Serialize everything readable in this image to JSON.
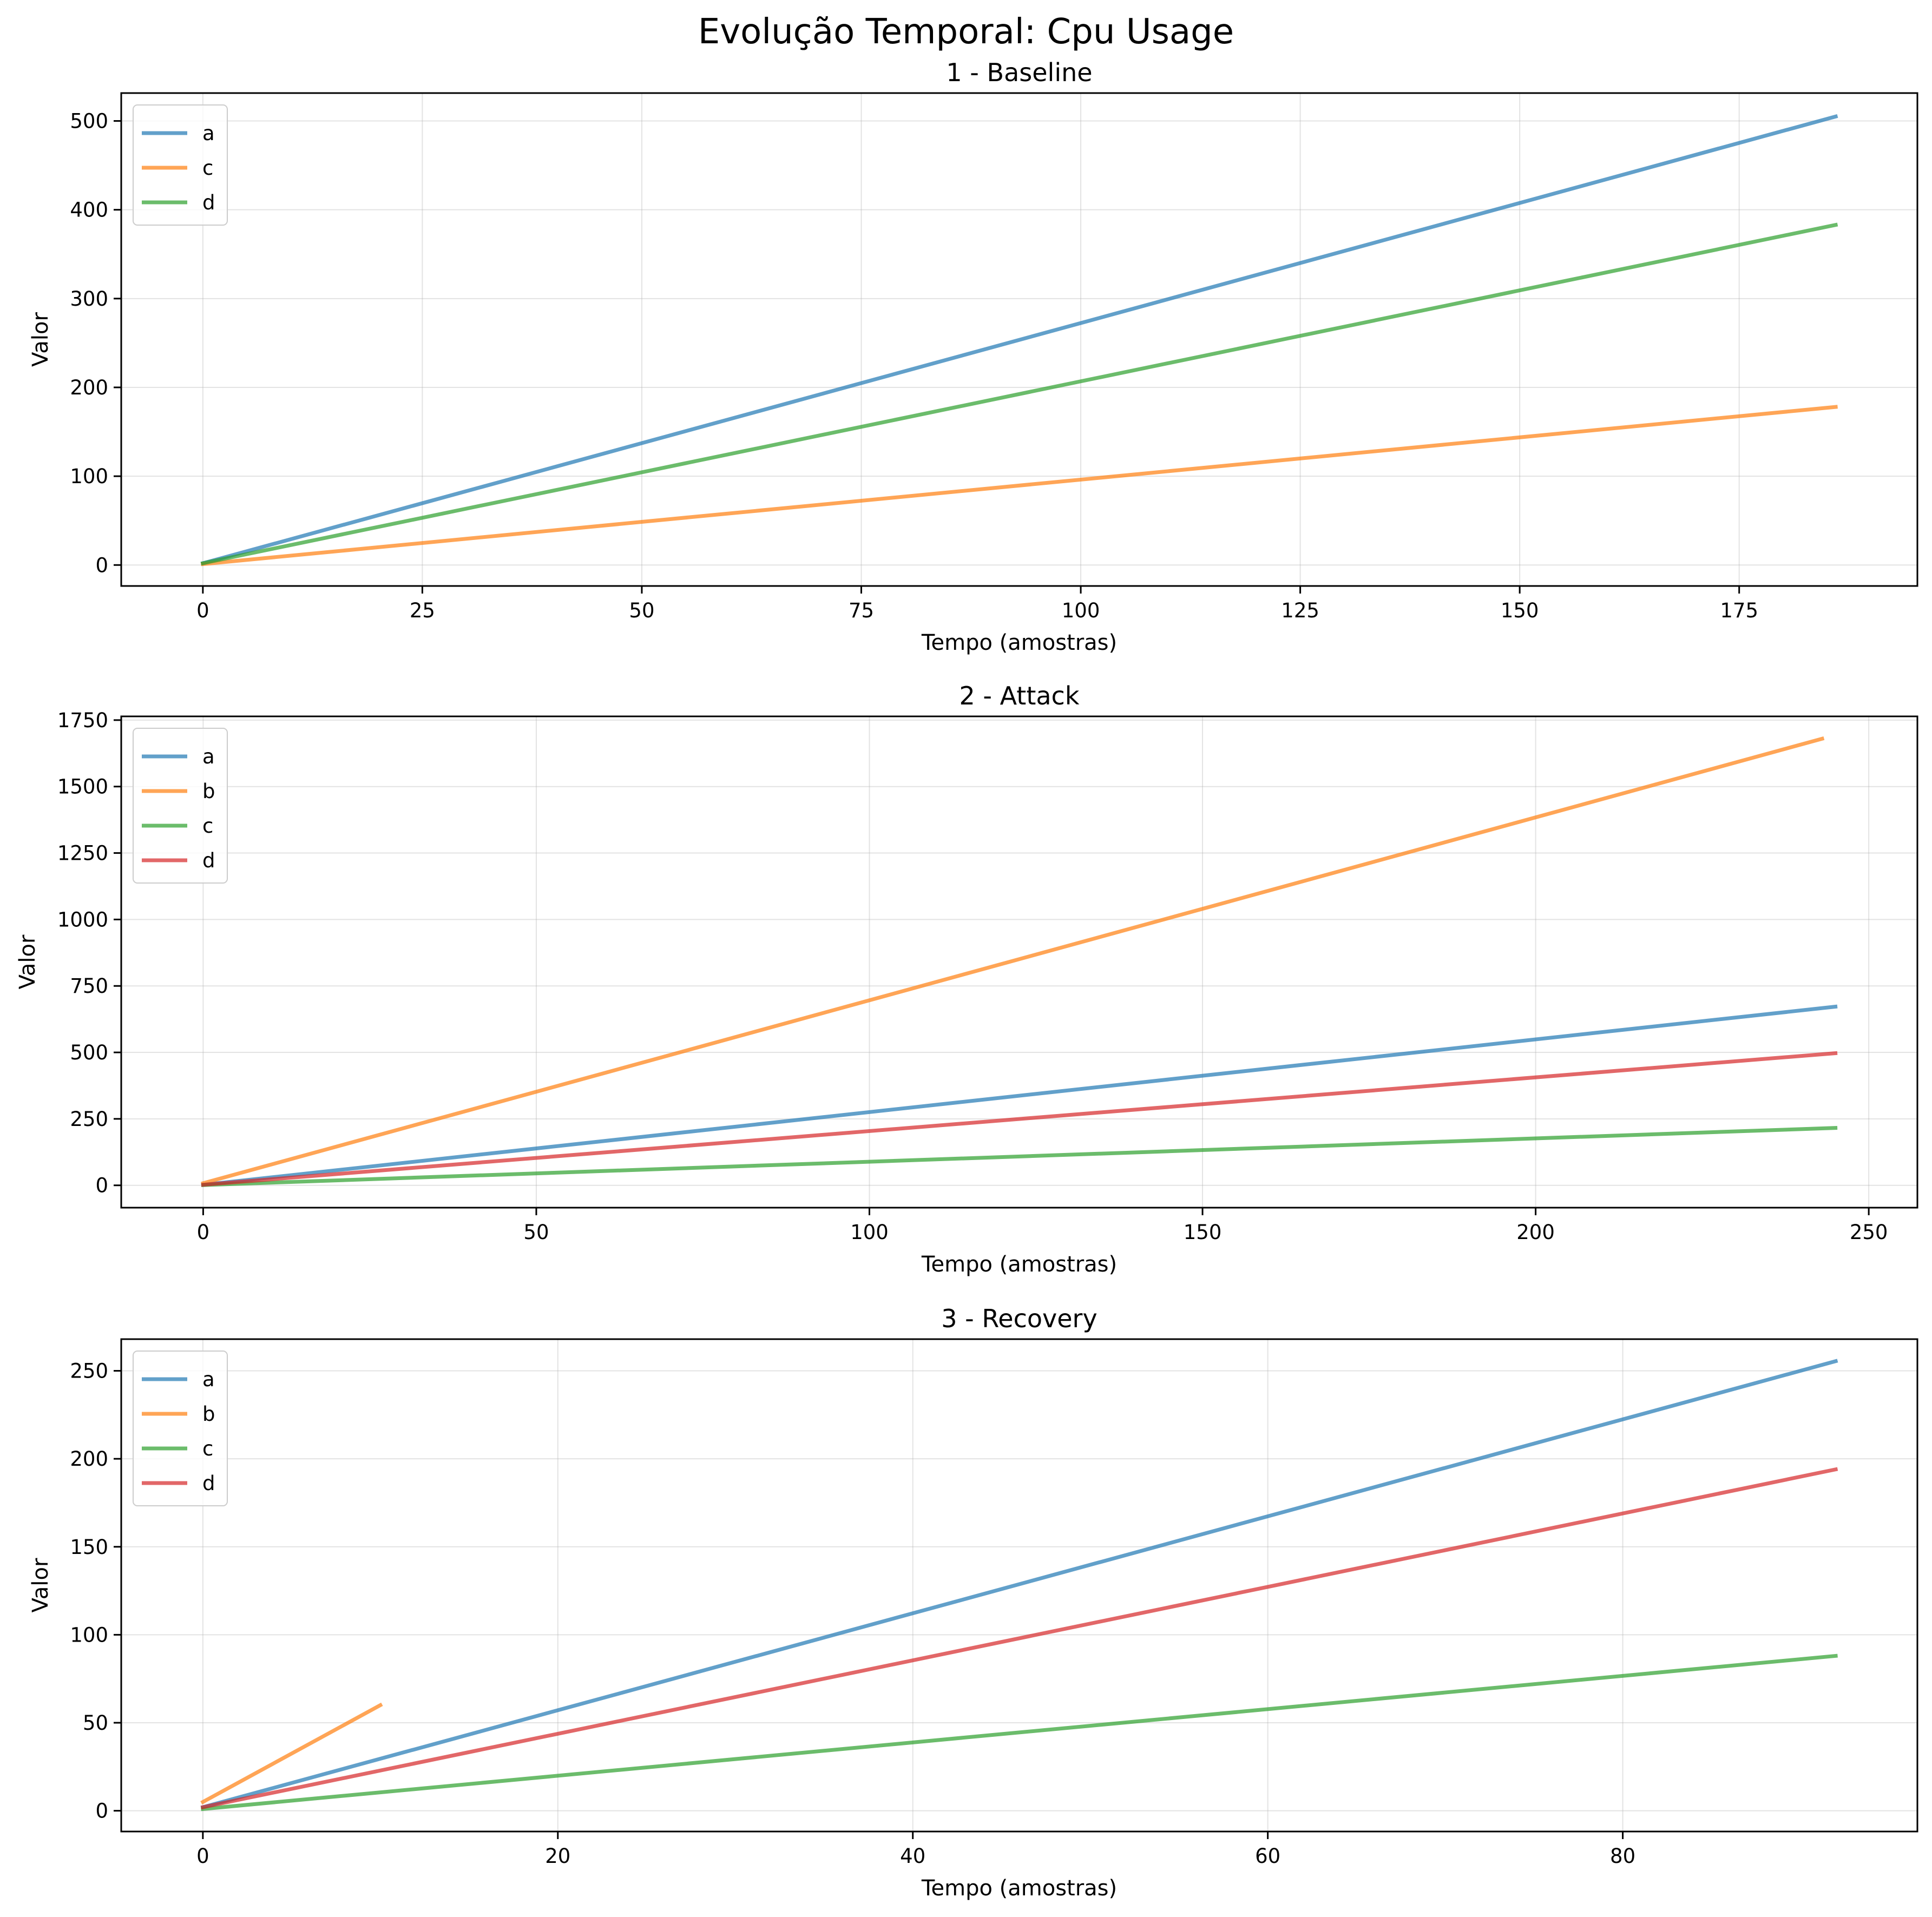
{
  "figure": {
    "title": "Evolução Temporal: Cpu Usage"
  },
  "chart_data": [
    {
      "type": "line",
      "title": "1 - Baseline",
      "xlabel": "Tempo (amostras)",
      "ylabel": "Valor",
      "xlim": [
        -9.3,
        195.3
      ],
      "ylim": [
        -23.6,
        531.4
      ],
      "xticks": [
        0,
        25,
        50,
        75,
        100,
        125,
        150,
        175
      ],
      "yticks": [
        0,
        100,
        200,
        300,
        400,
        500
      ],
      "grid": true,
      "legend_position": "top-left",
      "series": [
        {
          "name": "a",
          "color": "#1f77b4",
          "x": [
            0,
            186
          ],
          "y": [
            2,
            505
          ]
        },
        {
          "name": "c",
          "color": "#ff7f0e",
          "x": [
            0,
            186
          ],
          "y": [
            1,
            178
          ]
        },
        {
          "name": "d",
          "color": "#2ca02c",
          "x": [
            0,
            186
          ],
          "y": [
            2,
            383
          ]
        }
      ]
    },
    {
      "type": "line",
      "title": "2 - Attack",
      "xlabel": "Tempo (amostras)",
      "ylabel": "Valor",
      "xlim": [
        -12.3,
        257.3
      ],
      "ylim": [
        -84,
        1764
      ],
      "xticks": [
        0,
        50,
        100,
        150,
        200,
        250
      ],
      "yticks": [
        0,
        250,
        500,
        750,
        1000,
        1250,
        1500,
        1750
      ],
      "grid": true,
      "legend_position": "top-left",
      "series": [
        {
          "name": "a",
          "color": "#1f77b4",
          "x": [
            0,
            245
          ],
          "y": [
            2,
            672
          ]
        },
        {
          "name": "b",
          "color": "#ff7f0e",
          "x": [
            0,
            243
          ],
          "y": [
            8,
            1680
          ]
        },
        {
          "name": "c",
          "color": "#2ca02c",
          "x": [
            0,
            245
          ],
          "y": [
            1,
            216
          ]
        },
        {
          "name": "d",
          "color": "#d62728",
          "x": [
            0,
            245
          ],
          "y": [
            2,
            497
          ]
        }
      ]
    },
    {
      "type": "line",
      "title": "3 - Recovery",
      "xlabel": "Tempo (amostras)",
      "ylabel": "Valor",
      "xlim": [
        -4.6,
        96.6
      ],
      "ylim": [
        -11.8,
        268
      ],
      "xticks": [
        0,
        20,
        40,
        60,
        80
      ],
      "yticks": [
        0,
        50,
        100,
        150,
        200,
        250
      ],
      "grid": true,
      "legend_position": "top-left",
      "series": [
        {
          "name": "a",
          "color": "#1f77b4",
          "x": [
            0,
            92
          ],
          "y": [
            2,
            255.5
          ]
        },
        {
          "name": "b",
          "color": "#ff7f0e",
          "x": [
            0,
            10
          ],
          "y": [
            5,
            60
          ]
        },
        {
          "name": "c",
          "color": "#2ca02c",
          "x": [
            0,
            92
          ],
          "y": [
            1,
            88
          ]
        },
        {
          "name": "d",
          "color": "#d62728",
          "x": [
            0,
            92
          ],
          "y": [
            2,
            194
          ]
        }
      ]
    }
  ]
}
